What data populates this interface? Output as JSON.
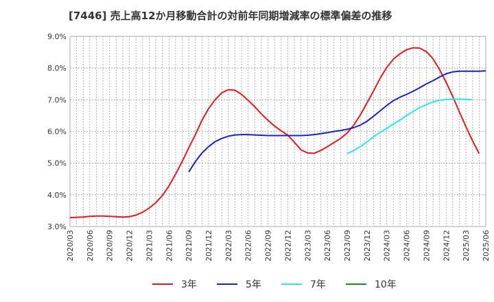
{
  "chart_data": {
    "type": "line",
    "title": "[7446]  売上高12か月移動合計の対前年同期増減率の標準偏差の推移",
    "xlabel": "",
    "ylabel": "",
    "ylim": [
      3.0,
      9.0
    ],
    "y_ticks": [
      "3.0%",
      "4.0%",
      "5.0%",
      "6.0%",
      "7.0%",
      "8.0%",
      "9.0%"
    ],
    "x_ticks": [
      "2020/03",
      "2020/06",
      "2020/09",
      "2020/12",
      "2021/03",
      "2021/06",
      "2021/09",
      "2021/12",
      "2022/03",
      "2022/06",
      "2022/09",
      "2022/12",
      "2023/03",
      "2023/06",
      "2023/09",
      "2023/12",
      "2024/03",
      "2024/06",
      "2024/09",
      "2024/12",
      "2025/03",
      "2025/06"
    ],
    "grid": true,
    "legend_position": "bottom",
    "series": [
      {
        "name": "3年",
        "color": "#e8161d",
        "start_month": 0,
        "values": [
          3.28,
          3.29,
          3.3,
          3.32,
          3.33,
          3.33,
          3.32,
          3.31,
          3.3,
          3.31,
          3.36,
          3.45,
          3.58,
          3.75,
          3.98,
          4.28,
          4.65,
          5.05,
          5.48,
          5.9,
          6.35,
          6.72,
          7.0,
          7.22,
          7.32,
          7.3,
          7.17,
          6.98,
          6.78,
          6.55,
          6.35,
          6.17,
          6.02,
          5.88,
          5.66,
          5.42,
          5.32,
          5.31,
          5.4,
          5.52,
          5.65,
          5.78,
          5.95,
          6.2,
          6.52,
          6.9,
          7.28,
          7.68,
          8.02,
          8.28,
          8.45,
          8.58,
          8.64,
          8.63,
          8.52,
          8.3,
          7.95,
          7.55,
          7.1,
          6.62,
          6.15,
          5.7,
          5.3
        ]
      },
      {
        "name": "5年",
        "color": "#1921c8",
        "start_month": 18,
        "values": [
          4.72,
          5.05,
          5.32,
          5.52,
          5.68,
          5.78,
          5.85,
          5.89,
          5.9,
          5.9,
          5.89,
          5.88,
          5.87,
          5.87,
          5.87,
          5.87,
          5.87,
          5.87,
          5.88,
          5.9,
          5.93,
          5.96,
          6.0,
          6.03,
          6.07,
          6.12,
          6.2,
          6.32,
          6.48,
          6.65,
          6.82,
          6.97,
          7.08,
          7.17,
          7.27,
          7.38,
          7.5,
          7.6,
          7.72,
          7.82,
          7.88,
          7.9,
          7.9,
          7.9,
          7.9,
          7.91
        ]
      },
      {
        "name": "7年",
        "color": "#29e8ec",
        "start_month": 42,
        "values": [
          5.3,
          5.4,
          5.52,
          5.67,
          5.83,
          5.97,
          6.1,
          6.23,
          6.36,
          6.5,
          6.63,
          6.75,
          6.85,
          6.93,
          6.98,
          7.01,
          7.02,
          7.02,
          7.01,
          7.0
        ]
      },
      {
        "name": "10年",
        "color": "#198b1c",
        "start_month": 0,
        "values": []
      }
    ]
  }
}
